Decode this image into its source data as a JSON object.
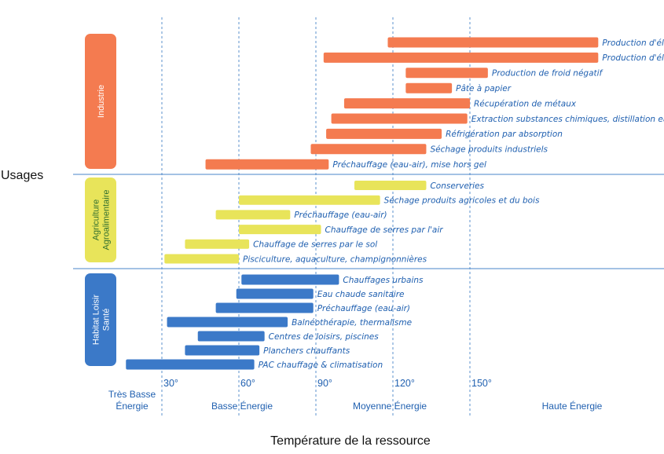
{
  "chart_data": {
    "type": "bar",
    "orientation": "horizontal-range",
    "ylabel": "Usages",
    "xlabel": "Température de la ressource",
    "x_ticks": [
      "30°",
      "60°",
      "90°",
      "120°",
      "150°"
    ],
    "energy_levels": [
      {
        "label": "Très Basse Énergie"
      },
      {
        "label": "Basse Énergie"
      },
      {
        "label": "Moyenne Énergie"
      },
      {
        "label": "Haute Énergie"
      }
    ],
    "colors": {
      "industrie": "#F47B50",
      "agriculture": "#E8E45A",
      "habitat": "#3B79C8",
      "text": "#2060B0",
      "grid": "#4A86C8"
    },
    "groups": [
      {
        "name": "Industrie",
        "color": "#F47B50",
        "label_color": "#ffffff",
        "items": [
          {
            "label": "Production d'électricité – Centrale à vapeur",
            "start": 118,
            "end": 200
          },
          {
            "label": "Production d'électricité – Centrale à cycle binaire",
            "start": 93,
            "end": 200
          },
          {
            "label": "Production de froid négatif",
            "start": 125,
            "end": 157
          },
          {
            "label": "Pâte à papier",
            "start": 125,
            "end": 143
          },
          {
            "label": "Récupération de métaux",
            "start": 101,
            "end": 150
          },
          {
            "label": "Extraction substances chimiques, distillation eau",
            "start": 96,
            "end": 149
          },
          {
            "label": "Réfrigération par absorption",
            "start": 94,
            "end": 139
          },
          {
            "label": "Séchage produits industriels",
            "start": 88,
            "end": 133
          },
          {
            "label": "Préchauffage (eau-air), mise hors gel",
            "start": 47,
            "end": 95
          }
        ]
      },
      {
        "name": "Agriculture Agroalimentaire",
        "name_lines": [
          "Agriculture",
          "Agroalimentaire"
        ],
        "color": "#E8E45A",
        "label_color": "#2F6E2F",
        "items": [
          {
            "label": "Conserveries",
            "start": 105,
            "end": 133
          },
          {
            "label": "Séchage produits agricoles et du bois",
            "start": 60,
            "end": 115
          },
          {
            "label": "Préchauffage (eau-air)",
            "start": 51,
            "end": 80
          },
          {
            "label": "Chauffage de serres par l'air",
            "start": 60,
            "end": 92
          },
          {
            "label": "Chauffage de serres par le sol",
            "start": 39,
            "end": 64
          },
          {
            "label": "Pisciculture, aquaculture, champignonnières",
            "start": 31,
            "end": 60
          }
        ]
      },
      {
        "name": "Habitat Loisir Santé",
        "name_lines": [
          "Habitat Loisir",
          "Santé"
        ],
        "color": "#3B79C8",
        "label_color": "#ffffff",
        "items": [
          {
            "label": "Chauffages urbains",
            "start": 61,
            "end": 99
          },
          {
            "label": "Eau chaude sanitaire",
            "start": 59,
            "end": 89
          },
          {
            "label": "Préchauffage (eau-air)",
            "start": 51,
            "end": 89
          },
          {
            "label": "Balnéothérapie, thermalisme",
            "start": 32,
            "end": 79
          },
          {
            "label": "Centres de loisirs, piscines",
            "start": 44,
            "end": 70
          },
          {
            "label": "Planchers chauffants",
            "start": 39,
            "end": 68
          },
          {
            "label": "PAC chauffage & climatisation",
            "start": 16,
            "end": 66
          }
        ]
      }
    ]
  }
}
